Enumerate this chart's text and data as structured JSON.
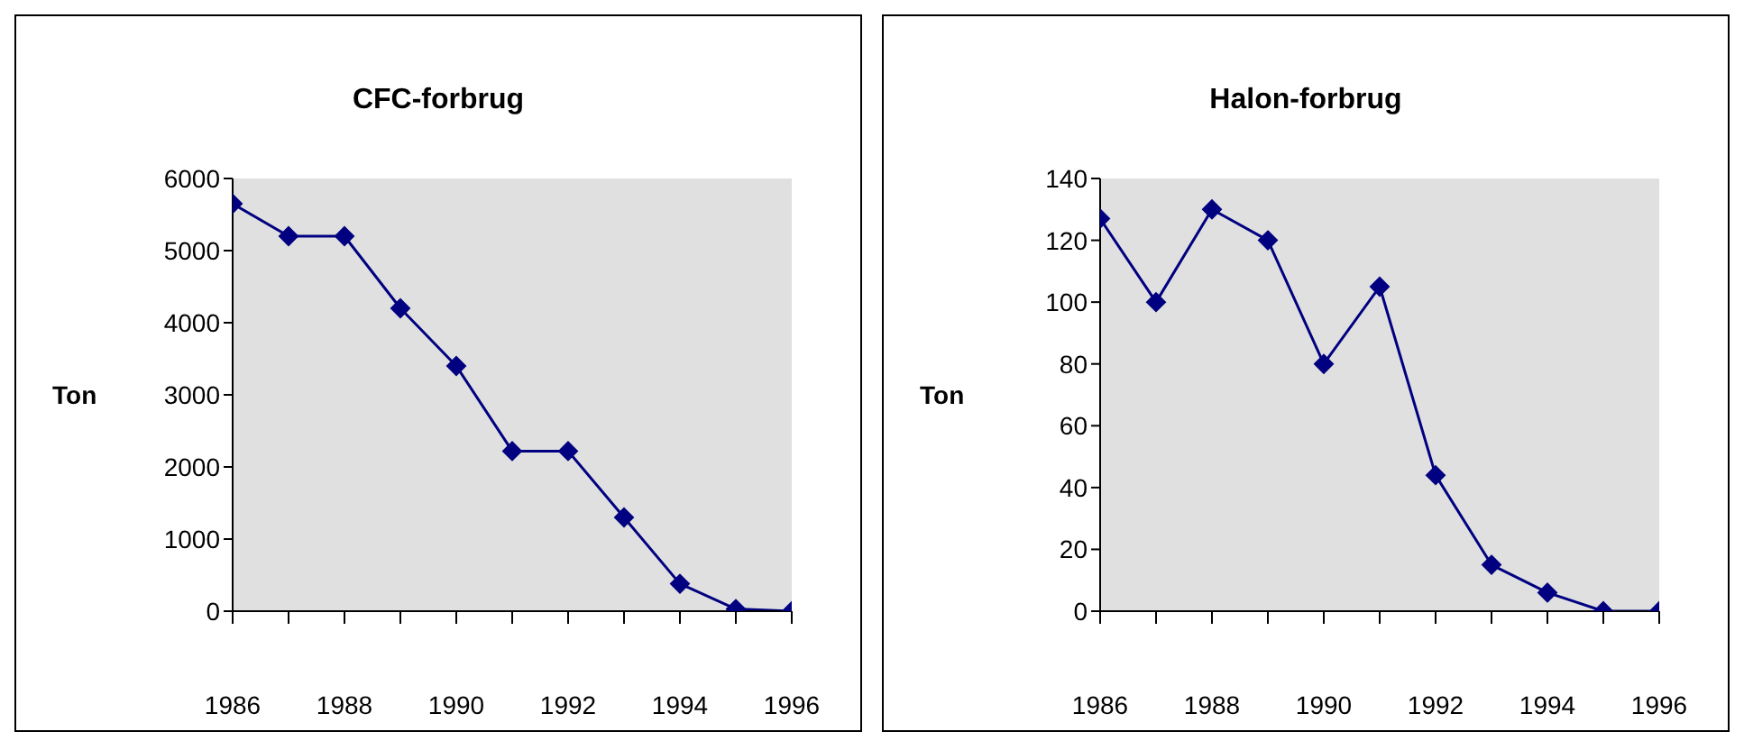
{
  "chart_data": [
    {
      "type": "line",
      "title": "CFC-forbrug",
      "ylabel": "Ton",
      "categories": [
        "1986",
        null,
        "1988",
        null,
        "1990",
        null,
        "1992",
        null,
        "1994",
        null,
        "1996"
      ],
      "series": [
        {
          "color": "#000080",
          "values": [
            5650,
            5200,
            5200,
            4200,
            3400,
            2220,
            2220,
            1300,
            380,
            30,
            0
          ]
        }
      ],
      "ylim": [
        0,
        6000
      ],
      "yticks": [
        0,
        1000,
        2000,
        3000,
        4000,
        5000,
        6000
      ],
      "marker": "diamond",
      "legend": false,
      "grid": false
    },
    {
      "type": "line",
      "title": "Halon-forbrug",
      "ylabel": "Ton",
      "categories": [
        "1986",
        null,
        "1988",
        null,
        "1990",
        null,
        "1992",
        null,
        "1994",
        null,
        "1996"
      ],
      "series": [
        {
          "color": "#000080",
          "values": [
            127,
            100,
            130,
            120,
            80,
            105,
            44,
            15,
            6,
            0,
            0
          ]
        }
      ],
      "ylim": [
        0,
        140
      ],
      "yticks": [
        0,
        20,
        40,
        60,
        80,
        100,
        120,
        140
      ],
      "marker": "diamond",
      "legend": false,
      "grid": false
    }
  ]
}
